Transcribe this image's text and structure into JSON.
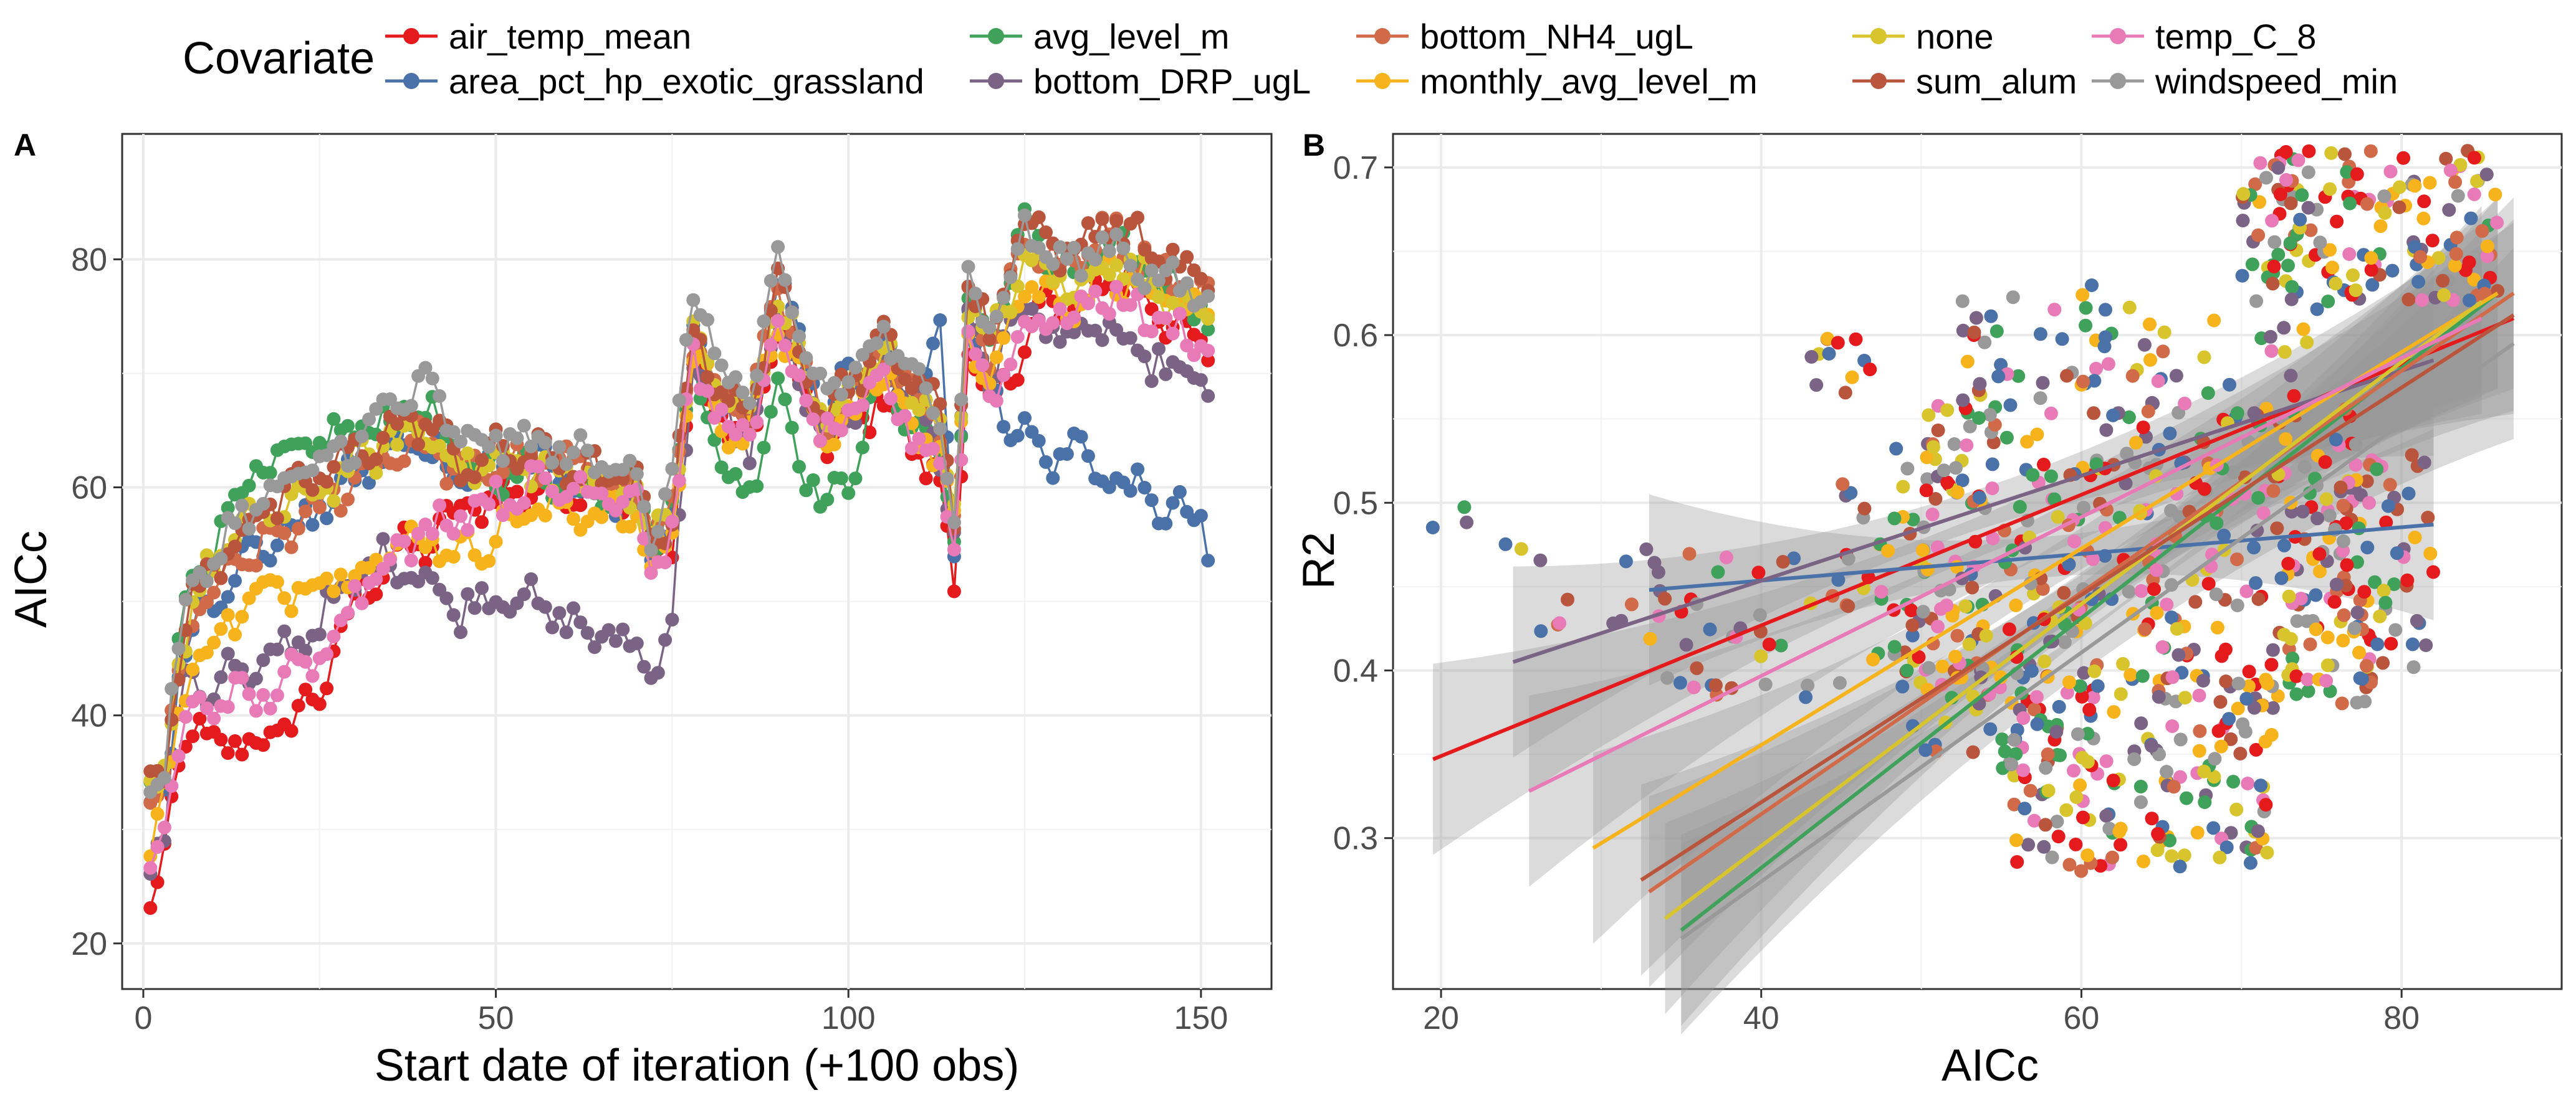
{
  "legend": {
    "title": "Covariate",
    "entries": [
      {
        "label": "air_temp_mean",
        "color": "#e41a1c"
      },
      {
        "label": "area_pct_hp_exotic_grassland",
        "color": "#4a72a8"
      },
      {
        "label": "avg_level_m",
        "color": "#3fa15a"
      },
      {
        "label": "bottom_DRP_ugL",
        "color": "#7a6384"
      },
      {
        "label": "bottom_NH4_ugL",
        "color": "#d06a48"
      },
      {
        "label": "monthly_avg_level_m",
        "color": "#f6b31c"
      },
      {
        "label": "none",
        "color": "#d8c42c"
      },
      {
        "label": "sum_alum",
        "color": "#b8553c"
      },
      {
        "label": "temp_C_8",
        "color": "#e87ab8"
      },
      {
        "label": "windspeed_min",
        "color": "#999999"
      }
    ]
  },
  "chart_data": [
    {
      "panel": "A",
      "type": "line",
      "xlabel": "Start date of iteration (+100 obs)",
      "ylabel": "AICc",
      "xlim": [
        -3,
        160
      ],
      "ylim": [
        16,
        91
      ],
      "x_ticks": [
        0,
        50,
        100,
        150
      ],
      "y_ticks": [
        20,
        40,
        60,
        80
      ],
      "grid": true,
      "x_knots": [
        1,
        3,
        5,
        7,
        9,
        12,
        15,
        20,
        25,
        30,
        35,
        40,
        45,
        50,
        55,
        60,
        65,
        70,
        72,
        75,
        78,
        82,
        86,
        90,
        95,
        97,
        100,
        105,
        110,
        113,
        115,
        117,
        120,
        125,
        128,
        132,
        136,
        140,
        145,
        150,
        151
      ],
      "series": [
        {
          "name": "air_temp_mean",
          "y_knots": [
            22,
            28,
            36,
            39,
            37,
            38,
            37,
            39,
            42,
            50,
            54,
            55,
            58,
            59,
            60,
            60,
            60,
            59,
            53,
            56,
            70,
            66,
            64,
            74,
            66,
            64,
            65,
            68,
            63,
            60,
            52,
            72,
            66,
            73,
            76,
            75,
            78,
            78,
            75,
            72,
            71
          ]
        },
        {
          "name": "area_pct_hp_exotic_grassland",
          "y_knots": [
            32,
            34,
            43,
            48,
            50,
            52,
            54,
            56,
            58,
            61,
            63,
            64,
            61,
            62,
            62,
            61,
            60,
            59,
            54,
            57,
            73,
            67,
            65,
            78,
            69,
            66,
            70,
            72,
            68,
            75,
            55,
            76,
            68,
            65,
            62,
            64,
            61,
            60,
            58,
            57,
            54
          ]
        },
        {
          "name": "avg_level_m",
          "y_knots": [
            34,
            36,
            46,
            52,
            54,
            58,
            61,
            62,
            64,
            65,
            66,
            67,
            62,
            61,
            62,
            60,
            60,
            60,
            56,
            58,
            72,
            61,
            60,
            69,
            60,
            58,
            61,
            70,
            65,
            63,
            56,
            76,
            72,
            84,
            80,
            78,
            81,
            80,
            78,
            76,
            75
          ]
        },
        {
          "name": "bottom_DRP_ugL",
          "y_knots": [
            28,
            30,
            40,
            44,
            42,
            44,
            43,
            46,
            48,
            52,
            54,
            52,
            49,
            51,
            50,
            48,
            47,
            46,
            44,
            48,
            72,
            66,
            64,
            75,
            66,
            64,
            66,
            72,
            67,
            63,
            56,
            75,
            70,
            76,
            74,
            73,
            74,
            72,
            70,
            70,
            68
          ]
        },
        {
          "name": "bottom_NH4_ugL",
          "y_knots": [
            32,
            34,
            44,
            48,
            50,
            52,
            54,
            56,
            58,
            61,
            63,
            64,
            61,
            62,
            62,
            62,
            61,
            60,
            55,
            58,
            73,
            68,
            66,
            77,
            68,
            66,
            68,
            72,
            68,
            66,
            57,
            77,
            72,
            82,
            80,
            79,
            83,
            81,
            79,
            77,
            76
          ]
        },
        {
          "name": "monthly_avg_level_m",
          "y_knots": [
            29,
            33,
            40,
            44,
            46,
            48,
            50,
            51,
            52,
            53,
            54,
            56,
            54,
            56,
            58,
            58,
            58,
            57,
            53,
            56,
            72,
            66,
            64,
            75,
            66,
            64,
            66,
            70,
            65,
            63,
            56,
            74,
            70,
            78,
            77,
            76,
            79,
            78,
            76,
            75,
            74
          ]
        },
        {
          "name": "none",
          "y_knots": [
            33,
            35,
            45,
            50,
            52,
            55,
            57,
            58,
            60,
            62,
            64,
            65,
            62,
            62,
            62,
            61,
            61,
            60,
            55,
            58,
            73,
            68,
            66,
            77,
            68,
            66,
            68,
            72,
            68,
            66,
            57,
            77,
            72,
            80,
            79,
            77,
            80,
            79,
            77,
            76,
            75
          ]
        },
        {
          "name": "sum_alum",
          "y_knots": [
            33,
            35,
            45,
            50,
            52,
            55,
            57,
            59,
            61,
            63,
            65,
            66,
            62,
            63,
            63,
            62,
            61,
            60,
            55,
            58,
            74,
            68,
            66,
            78,
            69,
            67,
            69,
            73,
            69,
            67,
            58,
            78,
            73,
            84,
            82,
            80,
            84,
            82,
            80,
            78,
            77
          ]
        },
        {
          "name": "temp_C_8",
          "y_knots": [
            27,
            31,
            37,
            40,
            41,
            42,
            41,
            43,
            45,
            51,
            54,
            56,
            58,
            59,
            60,
            60,
            60,
            59,
            53,
            56,
            71,
            66,
            64,
            74,
            66,
            64,
            66,
            69,
            64,
            62,
            55,
            73,
            68,
            74,
            75,
            75,
            77,
            76,
            74,
            73,
            72
          ]
        },
        {
          "name": "windspeed_min",
          "y_knots": [
            34,
            36,
            46,
            51,
            53,
            56,
            58,
            60,
            62,
            64,
            67,
            69,
            64,
            64,
            64,
            63,
            62,
            62,
            56,
            60,
            78,
            70,
            68,
            79,
            70,
            68,
            70,
            73,
            69,
            67,
            58,
            78,
            74,
            82,
            81,
            79,
            82,
            80,
            78,
            77,
            76
          ]
        }
      ]
    },
    {
      "panel": "B",
      "type": "scatter",
      "xlabel": "AICc",
      "ylabel": "R2",
      "xlim": [
        17,
        90
      ],
      "ylim": [
        0.21,
        0.72
      ],
      "x_ticks": [
        20,
        40,
        60,
        80
      ],
      "y_ticks": [
        0.3,
        0.4,
        0.5,
        0.6,
        0.7
      ],
      "grid": true,
      "clusters": [
        {
          "x": [
            19,
            22
          ],
          "y": [
            0.48,
            0.52
          ],
          "n": 3
        },
        {
          "x": [
            24,
            33
          ],
          "y": [
            0.42,
            0.48
          ],
          "n": 12
        },
        {
          "x": [
            33,
            48
          ],
          "y": [
            0.38,
            0.47
          ],
          "n": 50
        },
        {
          "x": [
            43,
            47
          ],
          "y": [
            0.56,
            0.6
          ],
          "n": 12
        },
        {
          "x": [
            45,
            52
          ],
          "y": [
            0.47,
            0.54
          ],
          "n": 20
        },
        {
          "x": [
            48,
            60
          ],
          "y": [
            0.34,
            0.45
          ],
          "n": 80
        },
        {
          "x": [
            50,
            78
          ],
          "y": [
            0.38,
            0.56
          ],
          "n": 340
        },
        {
          "x": [
            52,
            62
          ],
          "y": [
            0.56,
            0.63
          ],
          "n": 40
        },
        {
          "x": [
            55,
            72
          ],
          "y": [
            0.28,
            0.4
          ],
          "n": 180
        },
        {
          "x": [
            63,
            75
          ],
          "y": [
            0.55,
            0.62
          ],
          "n": 30
        },
        {
          "x": [
            70,
            86
          ],
          "y": [
            0.62,
            0.71
          ],
          "n": 170
        },
        {
          "x": [
            72,
            82
          ],
          "y": [
            0.39,
            0.53
          ],
          "n": 100
        }
      ],
      "fits": [
        {
          "name": "air_temp_mean",
          "x": [
            19.5,
            87
          ],
          "y": [
            0.347,
            0.61
          ]
        },
        {
          "name": "area_pct_hp_exotic_grassland",
          "x": [
            33,
            82
          ],
          "y": [
            0.448,
            0.487
          ]
        },
        {
          "name": "avg_level_m",
          "x": [
            35,
            86
          ],
          "y": [
            0.245,
            0.625
          ]
        },
        {
          "name": "bottom_DRP_ugL",
          "x": [
            24.5,
            82
          ],
          "y": [
            0.405,
            0.585
          ]
        },
        {
          "name": "bottom_NH4_ugL",
          "x": [
            33,
            87
          ],
          "y": [
            0.268,
            0.625
          ]
        },
        {
          "name": "monthly_avg_level_m",
          "x": [
            29.5,
            86
          ],
          "y": [
            0.294,
            0.625
          ]
        },
        {
          "name": "none",
          "x": [
            34,
            85
          ],
          "y": [
            0.252,
            0.62
          ]
        },
        {
          "name": "sum_alum",
          "x": [
            32.5,
            87
          ],
          "y": [
            0.275,
            0.612
          ]
        },
        {
          "name": "temp_C_8",
          "x": [
            25.5,
            85
          ],
          "y": [
            0.328,
            0.61
          ]
        },
        {
          "name": "windspeed_min",
          "x": [
            35,
            87
          ],
          "y": [
            0.24,
            0.595
          ]
        }
      ]
    }
  ]
}
